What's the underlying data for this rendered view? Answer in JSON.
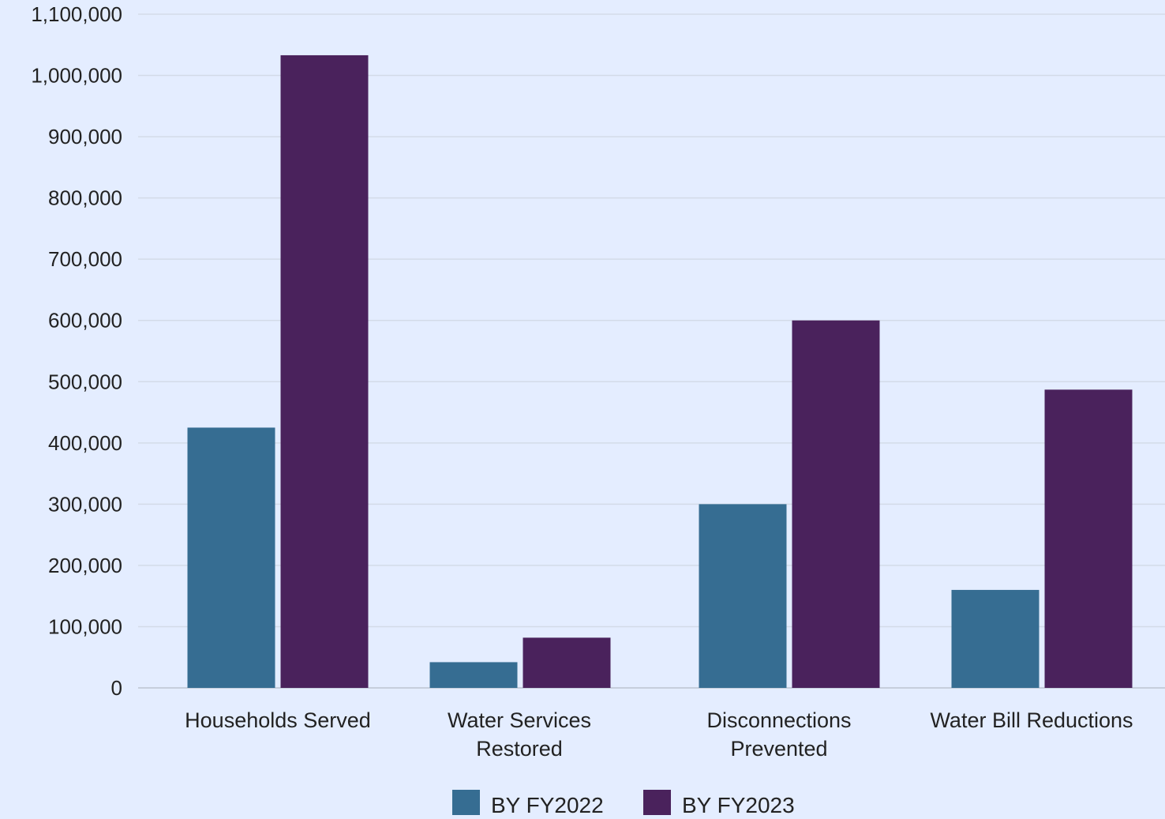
{
  "chart_data": {
    "type": "bar",
    "title": "",
    "xlabel": "",
    "ylabel": "",
    "categories": [
      [
        "Households Served"
      ],
      [
        "Water Services",
        "Restored"
      ],
      [
        "Disconnections",
        "Prevented"
      ],
      [
        "Water Bill Reductions"
      ]
    ],
    "series": [
      {
        "name": "BY FY2022",
        "color": "#366d92",
        "values": [
          425000,
          42000,
          300000,
          160000
        ]
      },
      {
        "name": "BY FY2023",
        "color": "#4a225c",
        "values": [
          1033000,
          82000,
          600000,
          487000
        ]
      }
    ],
    "ylim": [
      0,
      1100000
    ],
    "yticks": [
      0,
      100000,
      200000,
      300000,
      400000,
      500000,
      600000,
      700000,
      800000,
      900000,
      1000000,
      1100000
    ],
    "ytick_labels": [
      "0",
      "100,000",
      "200,000",
      "300,000",
      "400,000",
      "500,000",
      "600,000",
      "700,000",
      "800,000",
      "900,000",
      "1,000,000",
      "1,100,000"
    ],
    "grid": true,
    "legend_position": "bottom-center",
    "background_color": "#e4edff",
    "grid_color": "#d3dbe8"
  }
}
